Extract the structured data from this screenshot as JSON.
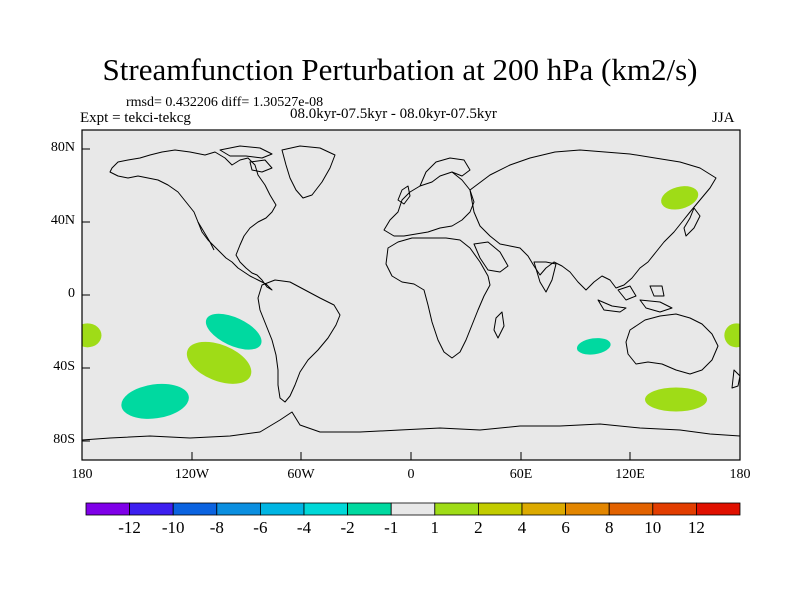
{
  "title": "Streamfunction Perturbation at 200 hPa (km2/s)",
  "stats": "rmsd= 0.432206 diff= 1.30527e-08",
  "experiment": "Expt = tekci-tekcg",
  "period": "08.0kyr-07.5kyr - 08.0kyr-07.5kyr",
  "season": "JJA",
  "colors": {
    "background": "#e8e8e8",
    "coastline": "#000000",
    "negative_anomaly": "#00d9a0",
    "positive_anomaly": "#9fdc17"
  },
  "map": {
    "lon_range": [
      -180,
      180
    ],
    "lat_range": [
      -90,
      90
    ],
    "lat_tick_labels": [
      "80N",
      "40N",
      "0",
      "40S",
      "80S"
    ],
    "lon_tick_labels": [
      "180",
      "120W",
      "60W",
      "0",
      "60E",
      "120E",
      "180"
    ]
  },
  "colorbar": {
    "colors": [
      "#7f00e8",
      "#3d1ff0",
      "#0b63e0",
      "#0b8fe0",
      "#00b5e3",
      "#00d8d8",
      "#00d9a0",
      "#e8e8e8",
      "#9fdc17",
      "#c2cc00",
      "#dcaa00",
      "#e38600",
      "#e26200",
      "#e23d00",
      "#e01000"
    ],
    "labels": [
      "-12",
      "-10",
      "-8",
      "-6",
      "-4",
      "-2",
      "-1",
      "1",
      "2",
      "4",
      "6",
      "8",
      "10",
      "12"
    ]
  },
  "anomalies": [
    {
      "sign": "negative",
      "lon": -97,
      "lat": -20
    },
    {
      "sign": "positive",
      "lon": -105,
      "lat": -37
    },
    {
      "sign": "negative",
      "lon": -140,
      "lat": -58
    },
    {
      "sign": "positive",
      "lon": -177,
      "lat": -22
    },
    {
      "sign": "positive",
      "lon": 178,
      "lat": -22
    },
    {
      "sign": "negative",
      "lon": 100,
      "lat": -28
    },
    {
      "sign": "positive",
      "lon": 145,
      "lat": -57
    },
    {
      "sign": "positive",
      "lon": 147,
      "lat": 53
    }
  ]
}
